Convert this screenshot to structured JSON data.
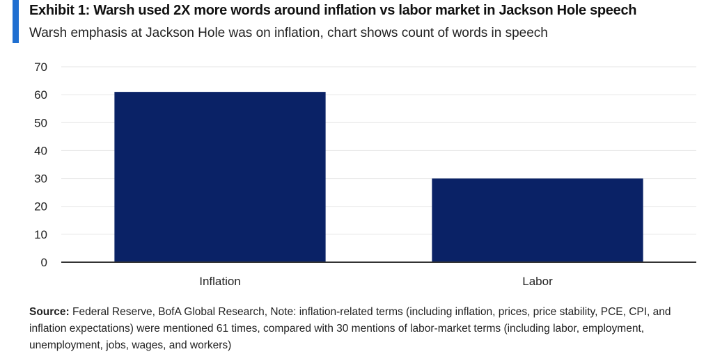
{
  "header": {
    "title": "Exhibit 1: Warsh used 2X more words around inflation vs labor market in Jackson Hole speech",
    "subtitle": "Warsh emphasis at Jackson Hole was on inflation, chart shows count of words in speech"
  },
  "colors": {
    "accent": "#1f6fd1",
    "bar": "#0a2266",
    "grid": "#e6e6e6",
    "axis": "#333333"
  },
  "chart_data": {
    "type": "bar",
    "categories": [
      "Inflation",
      "Labor"
    ],
    "values": [
      61,
      30
    ],
    "title": "Exhibit 1: Warsh used 2X more words around inflation vs labor market in Jackson Hole speech",
    "subtitle": "Warsh emphasis at Jackson Hole was on inflation, chart shows count of words in speech",
    "xlabel": "",
    "ylabel": "",
    "ylim": [
      0,
      70
    ],
    "yticks": [
      0,
      10,
      20,
      30,
      40,
      50,
      60,
      70
    ],
    "grid": true,
    "legend": "none"
  },
  "footnote": {
    "source_label": "Source:",
    "text": "Federal Reserve, BofA Global Research, Note: inflation-related terms (including inflation, prices, price stability, PCE, CPI, and inflation expectations) were mentioned 61 times, compared with 30 mentions of labor-market terms (including labor, employment, unemployment, jobs, wages, and workers)"
  }
}
